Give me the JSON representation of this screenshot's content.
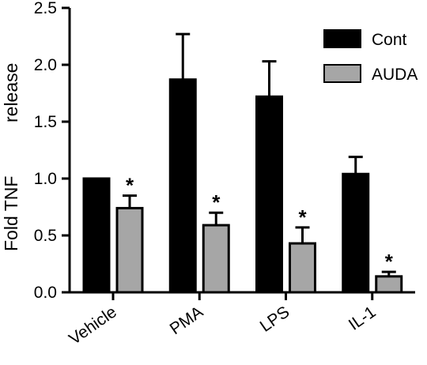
{
  "chart_data": {
    "type": "bar",
    "categories": [
      "Vehicle",
      "PMA",
      "LPS",
      "IL-1"
    ],
    "series": [
      {
        "name": "Cont",
        "color": "#000000",
        "values": [
          1.0,
          1.87,
          1.72,
          1.04
        ],
        "errors": [
          0.0,
          0.4,
          0.31,
          0.15
        ]
      },
      {
        "name": "AUDA",
        "color": "#a6a6a6",
        "values": [
          0.74,
          0.59,
          0.43,
          0.14
        ],
        "errors": [
          0.11,
          0.11,
          0.14,
          0.04
        ]
      }
    ],
    "annotations": [
      "*",
      "*",
      "*",
      "*"
    ],
    "ylabel_parts": [
      "Fold TNF",
      "release"
    ],
    "ylim": [
      0,
      2.5
    ],
    "yticks": [
      "0.0",
      "0.5",
      "1.0",
      "1.5",
      "2.0",
      "2.5"
    ],
    "legend_position": "top-right",
    "grid": false
  }
}
